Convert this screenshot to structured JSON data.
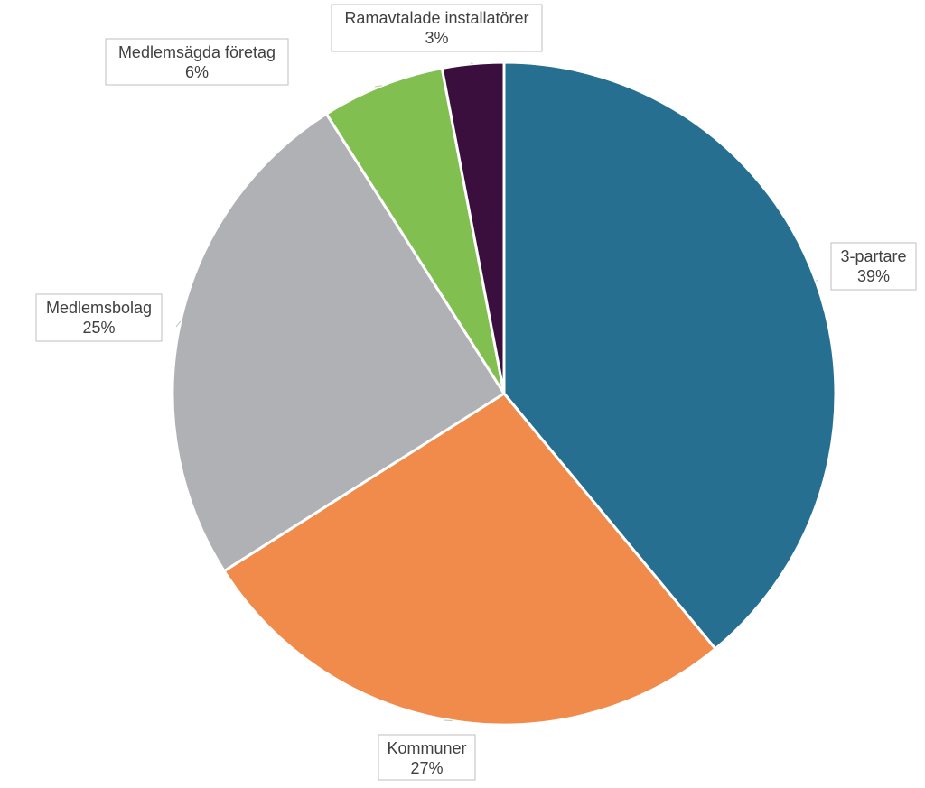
{
  "chart_data": {
    "type": "pie",
    "title": "",
    "slices": [
      {
        "label": "3-partare",
        "value": 39,
        "display": "39%",
        "color": "#266f91"
      },
      {
        "label": "Kommuner",
        "value": 27,
        "display": "27%",
        "color": "#f08b4b"
      },
      {
        "label": "Medlemsbolag",
        "value": 25,
        "display": "25%",
        "color": "#afb1b4"
      },
      {
        "label": "Medlemsägda företag",
        "value": 6,
        "display": "6%",
        "color": "#80bf50"
      },
      {
        "label": "Ramavtalade installatörer",
        "value": 3,
        "display": "3%",
        "color": "#3a0e3d"
      }
    ],
    "legend": "none",
    "data_labels": "outside with leader lines"
  }
}
